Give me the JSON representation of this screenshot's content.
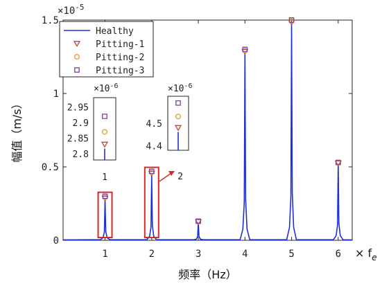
{
  "chart_data": {
    "type": "line",
    "title": "",
    "xlabel": "频率（Hz）",
    "ylabel": "幅值（m/s）",
    "x_unit_label": "× f",
    "x_unit_subscript": "e",
    "y_exponent_label": "×10",
    "y_exponent_power": "-5",
    "xlim": [
      0.1,
      6.3
    ],
    "ylim": [
      0,
      1.5
    ],
    "x_ticks": [
      1,
      2,
      3,
      4,
      5,
      6
    ],
    "x_tick_labels": [
      "1",
      "2",
      "3",
      "4",
      "5",
      "6"
    ],
    "y_ticks": [
      0,
      0.5,
      1,
      1.5
    ],
    "y_tick_labels": [
      "0",
      "0.5",
      "1",
      "1.5"
    ],
    "grid": false,
    "legend_position": "top-left",
    "series": [
      {
        "name": "Healthy",
        "style": "line",
        "color": "#1f2fd6",
        "x": [
          1,
          2,
          3,
          4,
          5,
          6
        ],
        "values": [
          0.28,
          0.45,
          0.12,
          1.28,
          1.48,
          0.52
        ]
      },
      {
        "name": "Pitting-1",
        "style": "marker",
        "marker": "triangle-down",
        "color": "#b5473a",
        "x": [
          1,
          2,
          3,
          4,
          5,
          6
        ],
        "values": [
          0.28,
          0.45,
          0.12,
          1.28,
          1.48,
          0.52
        ]
      },
      {
        "name": "Pitting-2",
        "style": "marker",
        "marker": "circle",
        "color": "#d9a21b",
        "x": [
          1,
          2,
          3,
          4,
          5,
          6
        ],
        "values": [
          0.285,
          0.455,
          0.12,
          1.285,
          1.485,
          0.52
        ]
      },
      {
        "name": "Pitting-3",
        "style": "marker",
        "marker": "square",
        "color": "#7b3fa3",
        "x": [
          1,
          2,
          3,
          4,
          5,
          6
        ],
        "values": [
          0.29,
          0.46,
          0.12,
          1.29,
          1.49,
          0.52
        ]
      }
    ],
    "insets": [
      {
        "label": "1",
        "exponent_label": "×10",
        "exponent_power": "-6",
        "y_tick_labels": [
          "2.95",
          "2.9",
          "2.85",
          "2.8"
        ],
        "y_ticks": [
          2.95,
          2.9,
          2.85,
          2.8
        ],
        "ylim": [
          2.78,
          2.98
        ],
        "markers": {
          "Pitting-1": 2.83,
          "Pitting-2": 2.87,
          "Pitting-3": 2.92
        }
      },
      {
        "label": "2",
        "exponent_label": "×10",
        "exponent_power": "-6",
        "y_tick_labels": [
          "4.5",
          "4.4"
        ],
        "y_ticks": [
          4.5,
          4.4
        ],
        "ylim": [
          4.38,
          4.62
        ],
        "markers": {
          "Pitting-1": 4.48,
          "Pitting-2": 4.53,
          "Pitting-3": 4.59
        }
      }
    ]
  }
}
